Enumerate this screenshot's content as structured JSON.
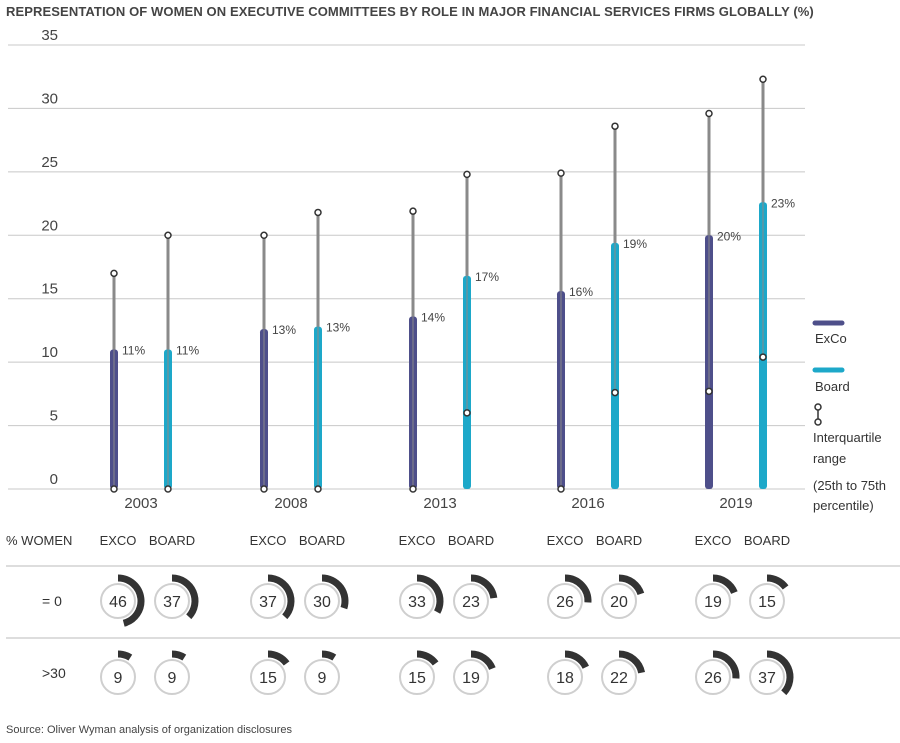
{
  "title": "REPRESENTATION OF WOMEN ON EXECUTIVE COMMITTEES BY ROLE IN MAJOR FINANCIAL SERVICES FIRMS GLOBALLY (%)",
  "source": "Source: Oliver Wyman analysis of organization disclosures",
  "colors": {
    "exco": "#4e4f8a",
    "board": "#1da8c9",
    "whisker": "#8a8a8a",
    "grid": "#c8c8c8",
    "donut_ring": "#cfcfcf",
    "donut_arc": "#333333"
  },
  "legend": {
    "exco": "ExCo",
    "board": "Board",
    "iqr_lines": [
      "Interquartile",
      "range"
    ],
    "percentile_lines": [
      "(25th to 75th",
      "percentile)"
    ],
    "icon": "interquartile-icon"
  },
  "table": {
    "header_label": "% WOMEN",
    "col_exco": "EXCO",
    "col_board": "BOARD",
    "row_labels": [
      "= 0",
      ">30"
    ]
  },
  "chart_data": {
    "type": "bar",
    "ylim": [
      0,
      35
    ],
    "yticks": [
      0,
      5,
      10,
      15,
      20,
      25,
      30,
      35
    ],
    "categories": [
      "2003",
      "2008",
      "2013",
      "2016",
      "2019"
    ],
    "series": [
      {
        "name": "ExCo",
        "values": [
          11,
          12.6,
          13.6,
          15.6,
          20
        ],
        "labels": [
          "11%",
          "13%",
          "14%",
          "16%",
          "20%"
        ],
        "q1": [
          0,
          0,
          0,
          0,
          7.7
        ],
        "q3": [
          17,
          20,
          21.9,
          24.9,
          29.6
        ]
      },
      {
        "name": "Board",
        "values": [
          11,
          12.8,
          16.8,
          19.4,
          22.6
        ],
        "labels": [
          "11%",
          "13%",
          "17%",
          "19%",
          "23%"
        ],
        "q1": [
          0,
          0,
          6,
          7.6,
          10.4
        ],
        "q3": [
          20,
          21.8,
          24.8,
          28.6,
          32.3
        ]
      }
    ],
    "donuts": {
      "zero": {
        "exco": [
          46,
          37,
          33,
          26,
          19
        ],
        "board": [
          37,
          30,
          23,
          20,
          15
        ]
      },
      "over30": {
        "exco": [
          9,
          15,
          15,
          18,
          26
        ],
        "board": [
          9,
          9,
          19,
          22,
          37
        ]
      }
    }
  }
}
